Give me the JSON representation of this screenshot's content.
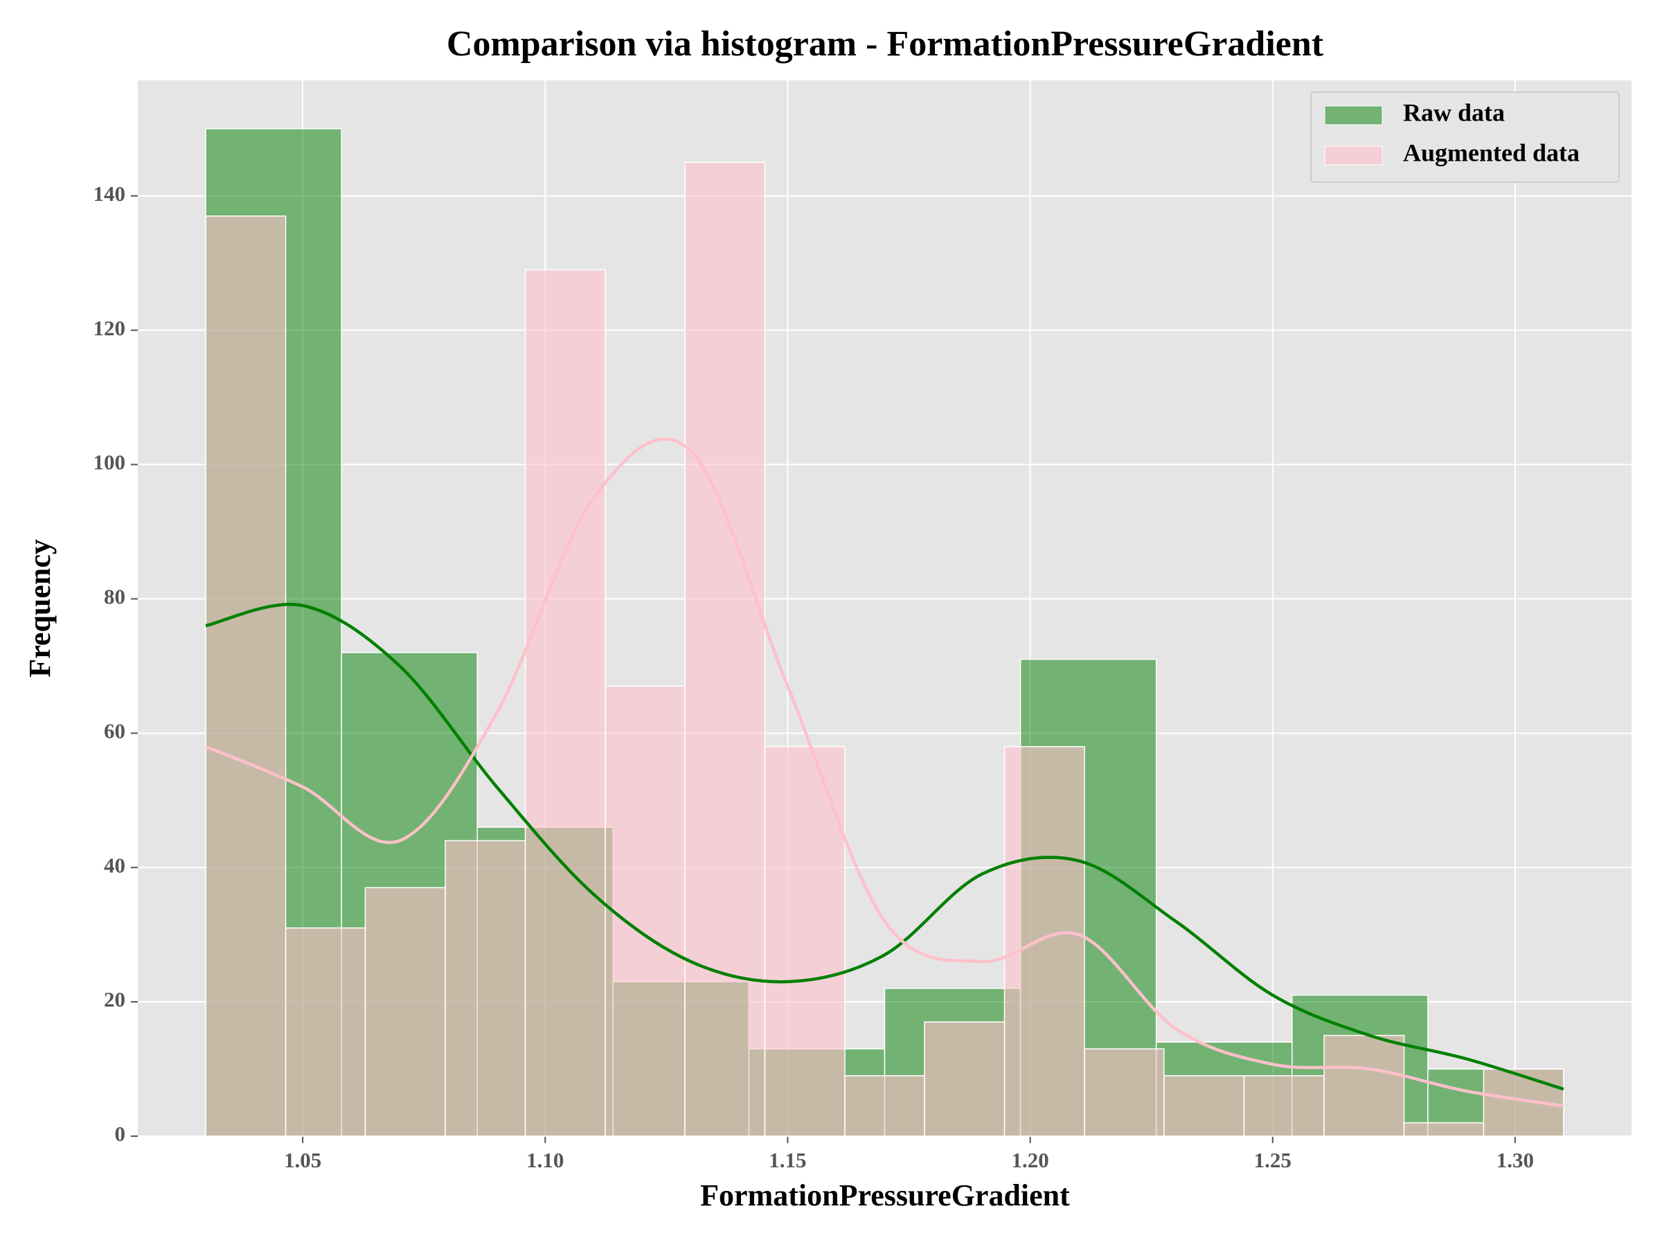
{
  "chart_data": {
    "type": "histogram",
    "title": "Comparison via histogram - FormationPressureGradient",
    "x_label": "FormationPressureGradient",
    "y_label": "Frequency",
    "xlim": [
      1.016,
      1.324
    ],
    "ylim": [
      0,
      157.2
    ],
    "xticks": [
      1.05,
      {
        "value": 1.1,
        "label": "1.10"
      },
      1.15,
      {
        "value": 1.2,
        "label": "1.20"
      },
      1.25,
      {
        "value": 1.3,
        "label": "1.30"
      }
    ],
    "yticks": [
      0,
      20,
      40,
      60,
      80,
      100,
      120,
      140
    ],
    "grid": true,
    "legend": "upper-right",
    "kde_x": [
      1.03,
      1.05,
      1.07,
      1.09,
      1.11,
      1.13,
      1.15,
      1.17,
      1.19,
      1.21,
      1.23,
      1.25,
      1.27,
      1.29,
      1.31
    ],
    "series": [
      {
        "name": "Raw data",
        "color": "#008000",
        "opacity": 0.5,
        "bins": [
          1.03,
          1.058,
          1.086,
          1.114,
          1.142,
          1.17,
          1.198,
          1.226,
          1.254,
          1.282,
          1.31
        ],
        "values": [
          150,
          72,
          46,
          23,
          13,
          22,
          71,
          14,
          21,
          10
        ],
        "kde_values": [
          76,
          79,
          70,
          52,
          36,
          26,
          23,
          27,
          39,
          41,
          32,
          21,
          15,
          11.5,
          7
        ]
      },
      {
        "name": "Augmented data",
        "color": "#ffc0cb",
        "opacity": 0.6,
        "bins": [
          1.03,
          1.0465,
          1.0629,
          1.0794,
          1.0959,
          1.1124,
          1.1288,
          1.1453,
          1.1618,
          1.1782,
          1.1947,
          1.2112,
          1.2276,
          1.2441,
          1.2606,
          1.2771,
          1.2935,
          1.31
        ],
        "values": [
          137,
          31,
          37,
          44,
          129,
          67,
          145,
          58,
          9,
          17,
          58,
          13,
          9,
          9,
          15,
          2,
          10
        ],
        "kde_values": [
          58,
          52,
          44,
          63,
          95,
          102,
          67,
          32,
          26,
          30,
          16,
          10.7,
          10,
          6.7,
          4.5
        ]
      }
    ]
  }
}
